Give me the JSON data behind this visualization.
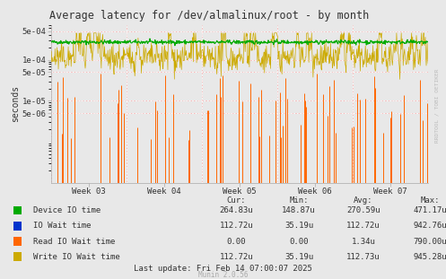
{
  "title": "Average latency for /dev/almalinux/root - by month",
  "ylabel": "seconds",
  "bg_color": "#e8e8e8",
  "plot_bg_color": "#e8e8e8",
  "x_labels": [
    "Week 03",
    "Week 04",
    "Week 05",
    "Week 06",
    "Week 07"
  ],
  "yticks": [
    5e-06,
    1e-05,
    5e-05,
    0.0001,
    0.0005
  ],
  "ytick_labels": [
    "5e-06",
    "1e-05",
    "5e-05",
    "1e-04",
    "5e-04"
  ],
  "ylim": [
    1e-07,
    0.0007
  ],
  "legend_items": [
    {
      "label": "Device IO time",
      "color": "#00aa00"
    },
    {
      "label": "IO Wait time",
      "color": "#0033cc"
    },
    {
      "label": "Read IO Wait time",
      "color": "#ff6600"
    },
    {
      "label": "Write IO Wait time",
      "color": "#ccaa00"
    }
  ],
  "legend_cols": [
    "Cur:",
    "Min:",
    "Avg:",
    "Max:"
  ],
  "legend_data": [
    [
      "264.83u",
      "148.87u",
      "270.59u",
      "471.17u"
    ],
    [
      "112.72u",
      "35.19u",
      "112.72u",
      "942.76u"
    ],
    [
      "0.00",
      "0.00",
      "1.34u",
      "790.00u"
    ],
    [
      "112.72u",
      "35.19u",
      "112.73u",
      "945.28u"
    ]
  ],
  "footer": "Last update: Fri Feb 14 07:00:07 2025",
  "munin_label": "Munin 2.0.56",
  "rrdtool_label": "RRDTOOL / TOBI OETIKER",
  "num_points": 800,
  "green_mean": 0.00027,
  "green_std": 1.5e-05,
  "yellow_mean_log": -3.96,
  "yellow_std_log": 0.18,
  "num_orange_spikes": 65,
  "orange_spike_min_log": -6.0,
  "orange_spike_max_log": -4.3
}
